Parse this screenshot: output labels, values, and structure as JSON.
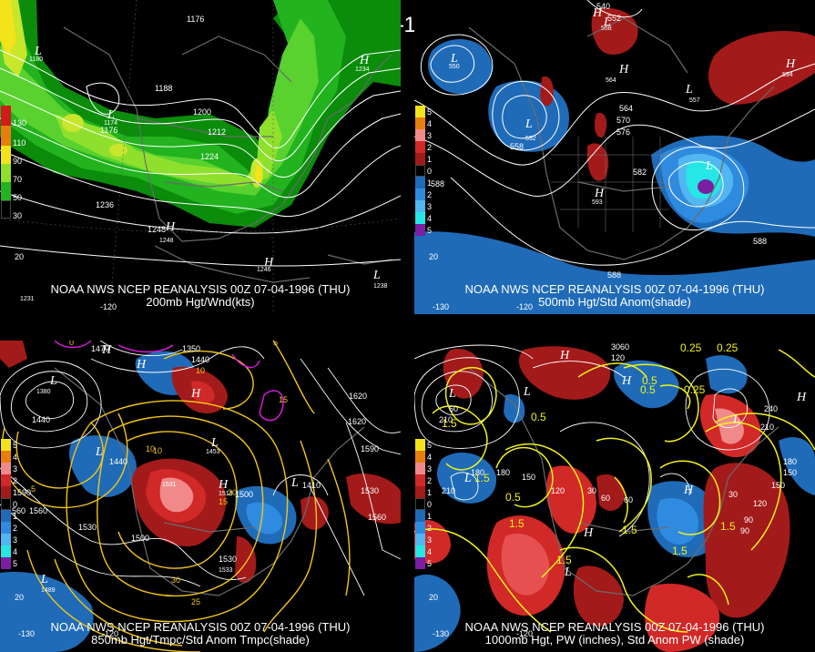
{
  "title": "00Z 07-04-1996 (THU)",
  "panels": [
    {
      "caption_line1": "NOAA NWS NCEP REANALYSIS 00Z 07-04-1996 (THU)",
      "caption_line2": "200mb Hgt/Wnd(kts)",
      "legend_labels": [
        "130",
        "110",
        "90",
        "70",
        "50",
        "30"
      ],
      "contour_labels": [
        "1176",
        "1180",
        "1188",
        "1176",
        "1200",
        "1212",
        "1224",
        "1236",
        "1248",
        "1248",
        "1246",
        "1234",
        "1238",
        "1231",
        "1174"
      ],
      "hl_labels": [
        "L",
        "L",
        "H",
        "H",
        "L",
        "H"
      ],
      "axis_labels": [
        "20",
        "-120"
      ]
    },
    {
      "caption_line1": "NOAA NWS NCEP REANALYSIS 00Z 07-04-1996 (THU)",
      "caption_line2": "500mb Hgt/Std Anom(shade)",
      "legend_labels": [
        "5",
        "4",
        "3",
        "2",
        "1",
        "0",
        "1",
        "2",
        "3",
        "4",
        "5"
      ],
      "contour_labels": [
        "540",
        "552",
        "558",
        "564",
        "570",
        "576",
        "582",
        "588",
        "588",
        "588",
        "564",
        "558",
        "550",
        "592",
        "594",
        "557",
        "593"
      ],
      "hl_labels": [
        "L",
        "L",
        "H",
        "H",
        "L",
        "H",
        "L",
        "L",
        "H"
      ],
      "axis_labels": [
        "20",
        "-130",
        "-120"
      ]
    },
    {
      "caption_line1": "NOAA NWS NCEP REANALYSIS 00Z 07-04-1996 (THU)",
      "caption_line2": "850mb Hgt/Tmpc/Std Anom Tmpc(shade)",
      "legend_labels": [
        "5",
        "4",
        "3",
        "2",
        "1590",
        "0",
        "1",
        "2",
        "3",
        "4",
        "5"
      ],
      "contour_labels": [
        "1470",
        "1350",
        "1440",
        "1380",
        "1440",
        "1620",
        "1590",
        "1560",
        "1530",
        "1500",
        "1530",
        "1560",
        "1500",
        "1440",
        "1410",
        "1530",
        "1560",
        "1620",
        "10",
        "15",
        "20",
        "25",
        "30",
        "5",
        "10",
        "15",
        "0",
        "5",
        "10",
        "1453",
        "1531",
        "1513",
        "1533",
        "1489"
      ],
      "hl_labels": [
        "L",
        "H",
        "H",
        "L",
        "H",
        "L",
        "L",
        "H",
        "L"
      ],
      "axis_labels": [
        "20",
        "-130",
        "-120"
      ]
    },
    {
      "caption_line1": "NOAA NWS NCEP REANALYSIS 00Z 07-04-1996 (THU)",
      "caption_line2": "1000mb Hgt, PW (inches), Std Anom PW (shade)",
      "legend_labels": [
        "5",
        "4",
        "3",
        "2",
        "1",
        "0",
        "1",
        "2",
        "3",
        "4",
        "5"
      ],
      "contour_labels": [
        "3060",
        "120",
        "210",
        "60",
        "240",
        "210",
        "180",
        "150",
        "120",
        "90",
        "60",
        "30",
        "180",
        "150",
        "120",
        "60",
        "30",
        "90",
        "150",
        "180",
        "210",
        "0.25",
        "0.25",
        "0.5",
        "0.25",
        "1.5",
        "0.5",
        "1.5",
        "1.5",
        "0.5",
        "1.5",
        "1.5",
        "1.5",
        "1.5",
        "0.5"
      ],
      "hl_labels": [
        "L",
        "H",
        "H",
        "L",
        "L",
        "H",
        "H",
        "L",
        "L",
        "H"
      ],
      "axis_labels": [
        "20",
        "-130",
        "-120"
      ]
    }
  ],
  "colors": {
    "wind_greens": [
      "#0b8c0b",
      "#22b31e",
      "#59d12f",
      "#8fe02d",
      "#c7e62c"
    ],
    "wind_yellows": [
      "#f2e31a",
      "#f0b20e",
      "#e87e0c"
    ],
    "anom_red": [
      "#a31a1a",
      "#d12828",
      "#e65050",
      "#f08a8a"
    ],
    "anom_blue": [
      "#1f6bb8",
      "#2f8be0",
      "#52b6f0",
      "#26e6e6",
      "#7a1fa3"
    ],
    "land": "#6b6b6b",
    "contour": "#ffffff",
    "temp_contour": "#f2c51a",
    "pw_contour": "#f2f21a"
  }
}
